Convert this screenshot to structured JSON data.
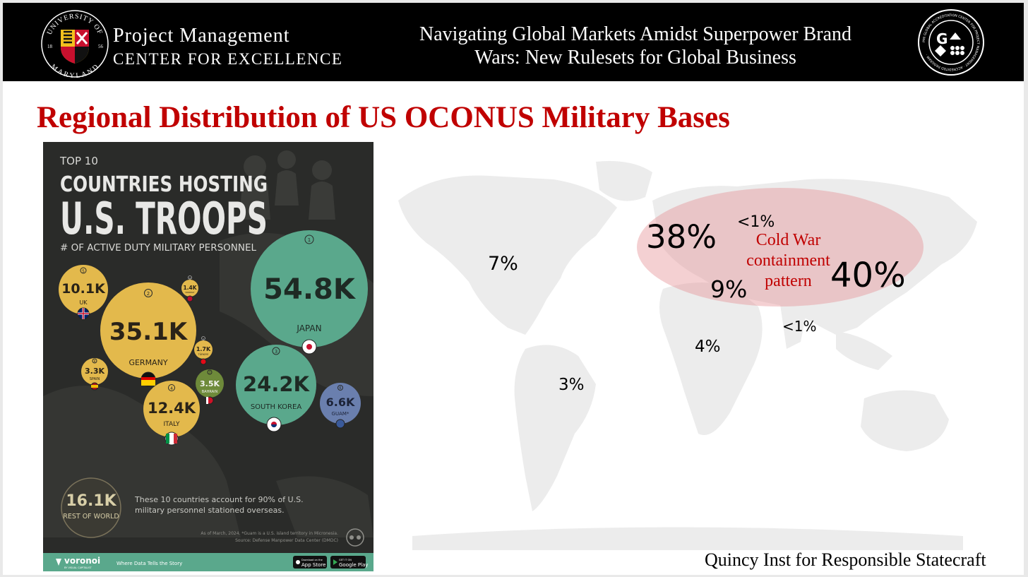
{
  "header": {
    "seal": {
      "ring_top": "UNIVERSITY OF",
      "ring_bottom": "MARYLAND",
      "year_left": "18",
      "year_right": "56"
    },
    "org_line1": "Project Management",
    "org_line2": "CENTER FOR EXCELLENCE",
    "title": "Navigating Global Markets Amidst Superpower Brand Wars: New Rulesets for Global Business",
    "badge": {
      "ring_text": "PMI GLOBAL ACCREDITATION CENTER FOR PROJECT MANAGEMENT · ACCREDITED PROGRAM ·"
    }
  },
  "slide_title": "Regional Distribution of US OCONUS Military Bases",
  "infographic": {
    "kicker": "TOP 10",
    "title_line1": "COUNTRIES HOSTING",
    "title_line2": "U.S. TROOPS",
    "subtitle": "# OF ACTIVE DUTY MILITARY PERSONNEL",
    "bubbles": [
      {
        "rank": "1",
        "value": "54.8K",
        "country": "JAPAN",
        "color": "#5aa88c"
      },
      {
        "rank": "2",
        "value": "35.1K",
        "country": "GERMANY",
        "color": "#e3b94c"
      },
      {
        "rank": "3",
        "value": "24.2K",
        "country": "SOUTH KOREA",
        "color": "#5aa88c"
      },
      {
        "rank": "4",
        "value": "12.4K",
        "country": "ITALY",
        "color": "#e3b94c"
      },
      {
        "rank": "5",
        "value": "10.1K",
        "country": "UK",
        "color": "#e3b94c"
      },
      {
        "rank": "6",
        "value": "6.6K",
        "country": "GUAM*",
        "color": "#6a7fae"
      },
      {
        "rank": "7",
        "value": "3.5K",
        "country": "BAHRAIN",
        "color": "#6e8a3a"
      },
      {
        "rank": "8",
        "value": "3.3K",
        "country": "SPAIN",
        "color": "#e3b94c"
      },
      {
        "rank": "9",
        "value": "1.7K",
        "country": "TÜRKIYE",
        "color": "#e3b94c"
      },
      {
        "rank": "10",
        "value": "1.4K",
        "country": "NORWAY",
        "color": "#e3b94c"
      }
    ],
    "rest_value": "16.1K",
    "rest_label": "REST OF WORLD",
    "note_line1": "These 10 countries account for 90% of U.S.",
    "note_line2": "military personnel stationed overseas.",
    "footnote1": "As of March, 2024. *Guam is a U.S. island territory in Micronesia.",
    "footnote2": "Source: Defense Manpower Data Center (DMDC)",
    "footer": {
      "brand": "voronoi",
      "brand_sub": "BY VISUAL CAPITALIST",
      "tagline": "Where Data Tells the Story",
      "appstore": "App Store",
      "appstore_sub": "Download on the",
      "googleplay": "Google Play",
      "googleplay_sub": "GET IT ON"
    }
  },
  "map_labels": {
    "north_america": "7%",
    "south_america": "3%",
    "europe": "38%",
    "russia": "<1%",
    "middle_east": "9%",
    "east_asia": "40%",
    "africa": "4%",
    "south_asia": "<1%"
  },
  "annotation": {
    "line1": "Cold War",
    "line2": "containment",
    "line3": "pattern"
  },
  "source": "Quincy Inst for Responsible Statecraft"
}
